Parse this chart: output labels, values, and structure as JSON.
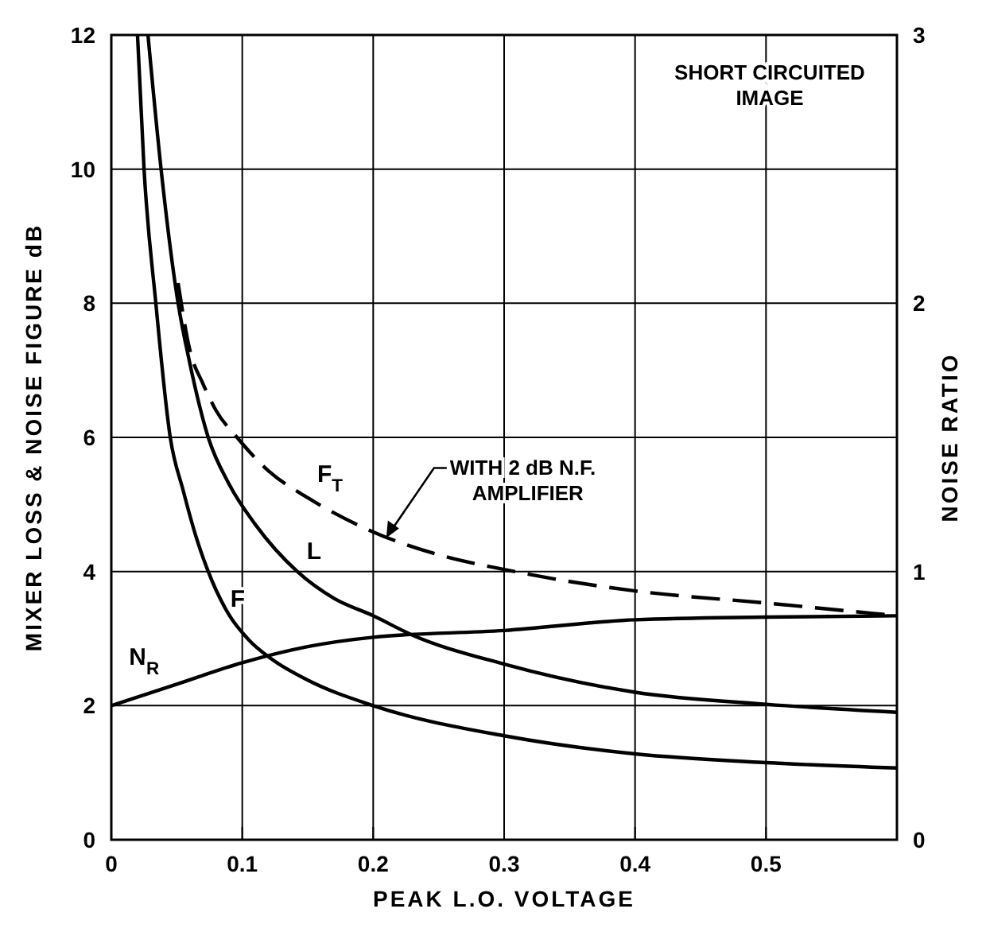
{
  "chart_data": {
    "type": "line",
    "xlabel": "PEAK L.O. VOLTAGE",
    "ylabel": "MIXER LOSS & NOISE FIGURE dB",
    "y2label": "NOISE RATIO",
    "xlim": [
      0,
      0.6
    ],
    "xticks": [
      0,
      0.1,
      0.2,
      0.3,
      0.4,
      0.5
    ],
    "ylim": [
      0,
      12
    ],
    "yticks": [
      0,
      2,
      4,
      6,
      8,
      10,
      12
    ],
    "y2lim": [
      0,
      3
    ],
    "y2ticks": [
      0,
      1,
      2,
      3
    ],
    "grid": true,
    "legend": false,
    "line_style": "solid",
    "marker": "none",
    "series": [
      {
        "name": "F$_{T}$",
        "color": "#000000",
        "line_style": "dashed",
        "x": [
          0.051,
          0.06,
          0.07,
          0.08,
          0.096,
          0.12,
          0.15,
          0.2,
          0.25,
          0.3,
          0.4,
          0.5,
          0.6
        ],
        "values": [
          8.3,
          7.3,
          6.8,
          6.4,
          6.0,
          5.5,
          5.1,
          4.59,
          4.25,
          4.03,
          3.71,
          3.53,
          3.34
        ]
      },
      {
        "name": "L",
        "color": "#000000",
        "x": [
          0.028,
          0.038,
          0.051,
          0.06,
          0.074,
          0.09,
          0.11,
          0.142,
          0.17,
          0.2,
          0.229,
          0.3,
          0.4,
          0.5,
          0.6
        ],
        "values": [
          12,
          10,
          8,
          7.1,
          6,
          5.3,
          4.7,
          4,
          3.6,
          3.34,
          3.06,
          2.62,
          2.2,
          2.02,
          1.9
        ]
      },
      {
        "name": "F",
        "color": "#000000",
        "x": [
          0.02,
          0.025,
          0.034,
          0.045,
          0.055,
          0.065,
          0.074,
          0.09,
          0.105,
          0.122,
          0.15,
          0.2,
          0.3,
          0.4,
          0.5,
          0.6
        ],
        "values": [
          12,
          10,
          8,
          6,
          5.2,
          4.5,
          4,
          3.35,
          2.98,
          2.7,
          2.38,
          2.0,
          1.55,
          1.28,
          1.15,
          1.07
        ]
      },
      {
        "name": "N$_{R}$",
        "color": "#000000",
        "axis": "y2",
        "x": [
          0,
          0.05,
          0.1,
          0.15,
          0.2,
          0.3,
          0.4,
          0.5,
          0.6
        ],
        "values": [
          0.5,
          0.58,
          0.66,
          0.72,
          0.755,
          0.78,
          0.82,
          0.83,
          0.835
        ]
      }
    ],
    "annotations": [
      "SHORT CIRCUITED\nIMAGE",
      {
        "text": "WITH 2 dB N.F.\nAMPLIFIER",
        "x": 0.21,
        "y": 4.5
      }
    ]
  }
}
